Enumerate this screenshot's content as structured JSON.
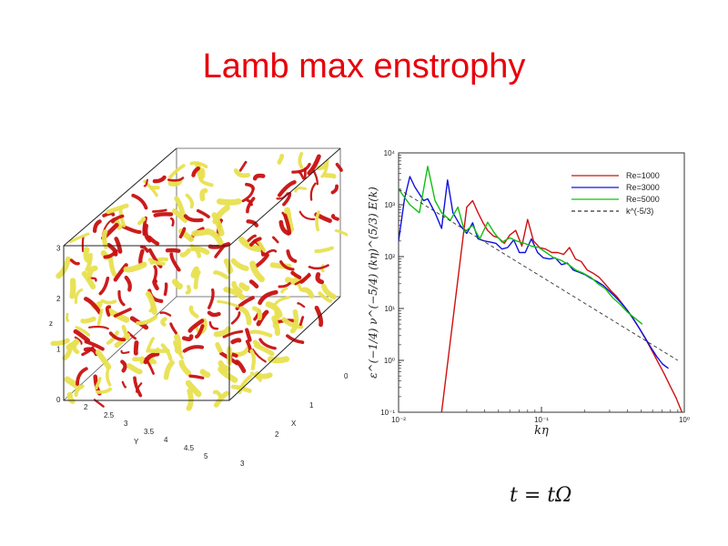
{
  "slide": {
    "title": "Lamb max enstrophy",
    "caption": "t = tΩ"
  },
  "cube": {
    "z_label": "z",
    "y_label": "Y",
    "x_label": "X",
    "z_ticks": [
      "0",
      "1",
      "2",
      "3"
    ],
    "y_ticks": [
      "2",
      "2.5",
      "3",
      "3.5",
      "4",
      "4.5",
      "5"
    ],
    "x_ticks": [
      "0",
      "1",
      "2",
      "3"
    ],
    "colors": {
      "surface": "#e8e050",
      "vortex": "#c81010"
    }
  },
  "chart_data": {
    "type": "line",
    "xlabel": "kη",
    "ylabel": "ε^(−1/4) ν^(−5/4) (kη)^(5/3) E(k)",
    "xscale": "log",
    "yscale": "log",
    "xlim": [
      0.01,
      1
    ],
    "ylim": [
      0.1,
      10000
    ],
    "x_ticks": [
      "10⁻²",
      "10⁻¹",
      "10⁰"
    ],
    "y_ticks": [
      "10⁻¹",
      "10⁰",
      "10¹",
      "10²",
      "10³",
      "10⁴"
    ],
    "legend_position": "top-right",
    "series": [
      {
        "name": "Re=1000",
        "color": "#d01010",
        "style": "solid",
        "x": [
          0.02,
          0.03,
          0.033,
          0.036,
          0.039,
          0.042,
          0.046,
          0.05,
          0.055,
          0.06,
          0.066,
          0.073,
          0.08,
          0.088,
          0.097,
          0.107,
          0.118,
          0.13,
          0.143,
          0.157,
          0.173,
          0.19,
          0.209,
          0.23,
          0.253,
          0.278,
          0.306,
          0.337,
          0.371,
          0.408,
          0.449,
          0.494,
          0.543,
          0.597,
          0.657,
          0.723,
          0.795,
          0.875,
          0.962
        ],
        "y": [
          0.1,
          900,
          1200,
          700,
          450,
          320,
          250,
          230,
          180,
          260,
          320,
          160,
          520,
          200,
          150,
          140,
          120,
          120,
          110,
          150,
          90,
          80,
          55,
          48,
          40,
          30,
          22,
          17,
          12,
          8.5,
          5.8,
          3.8,
          2.4,
          1.5,
          0.9,
          0.55,
          0.32,
          0.19,
          0.1
        ]
      },
      {
        "name": "Re=3000",
        "color": "#1010e0",
        "style": "solid",
        "x": [
          0.01,
          0.011,
          0.012,
          0.013,
          0.015,
          0.016,
          0.018,
          0.02,
          0.022,
          0.024,
          0.027,
          0.03,
          0.033,
          0.036,
          0.04,
          0.044,
          0.048,
          0.053,
          0.058,
          0.064,
          0.07,
          0.077,
          0.085,
          0.094,
          0.103,
          0.114,
          0.125,
          0.138,
          0.152,
          0.167,
          0.184,
          0.202,
          0.223,
          0.245,
          0.27,
          0.297,
          0.327,
          0.36,
          0.396,
          0.436,
          0.48,
          0.528,
          0.581,
          0.639,
          0.703,
          0.774
        ],
        "y": [
          200,
          1300,
          3500,
          2200,
          1200,
          1300,
          700,
          350,
          3000,
          700,
          400,
          280,
          450,
          220,
          200,
          190,
          180,
          140,
          150,
          210,
          120,
          120,
          220,
          120,
          95,
          90,
          95,
          70,
          75,
          55,
          50,
          45,
          38,
          33,
          28,
          22,
          17,
          13,
          9.5,
          6.5,
          4.3,
          2.8,
          1.8,
          1.2,
          0.85,
          0.7
        ]
      },
      {
        "name": "Re=5000",
        "color": "#10c010",
        "style": "solid",
        "x": [
          0.01,
          0.012,
          0.014,
          0.016,
          0.018,
          0.02,
          0.023,
          0.026,
          0.029,
          0.033,
          0.037,
          0.042,
          0.047,
          0.053,
          0.06,
          0.067,
          0.076,
          0.085,
          0.096,
          0.108,
          0.122,
          0.137,
          0.155,
          0.174,
          0.196,
          0.221,
          0.249,
          0.28,
          0.316,
          0.356,
          0.4,
          0.451,
          0.508
        ],
        "y": [
          2000,
          1000,
          700,
          5500,
          1200,
          700,
          500,
          900,
          300,
          400,
          220,
          460,
          280,
          190,
          230,
          200,
          180,
          160,
          150,
          120,
          95,
          85,
          70,
          55,
          48,
          40,
          30,
          24,
          16,
          12,
          8.5,
          6.5,
          5.0
        ]
      },
      {
        "name": "k^(-5/3)",
        "color": "#333333",
        "style": "dashed",
        "x": [
          0.01,
          0.9
        ],
        "y": [
          2000,
          1.0
        ]
      }
    ]
  }
}
